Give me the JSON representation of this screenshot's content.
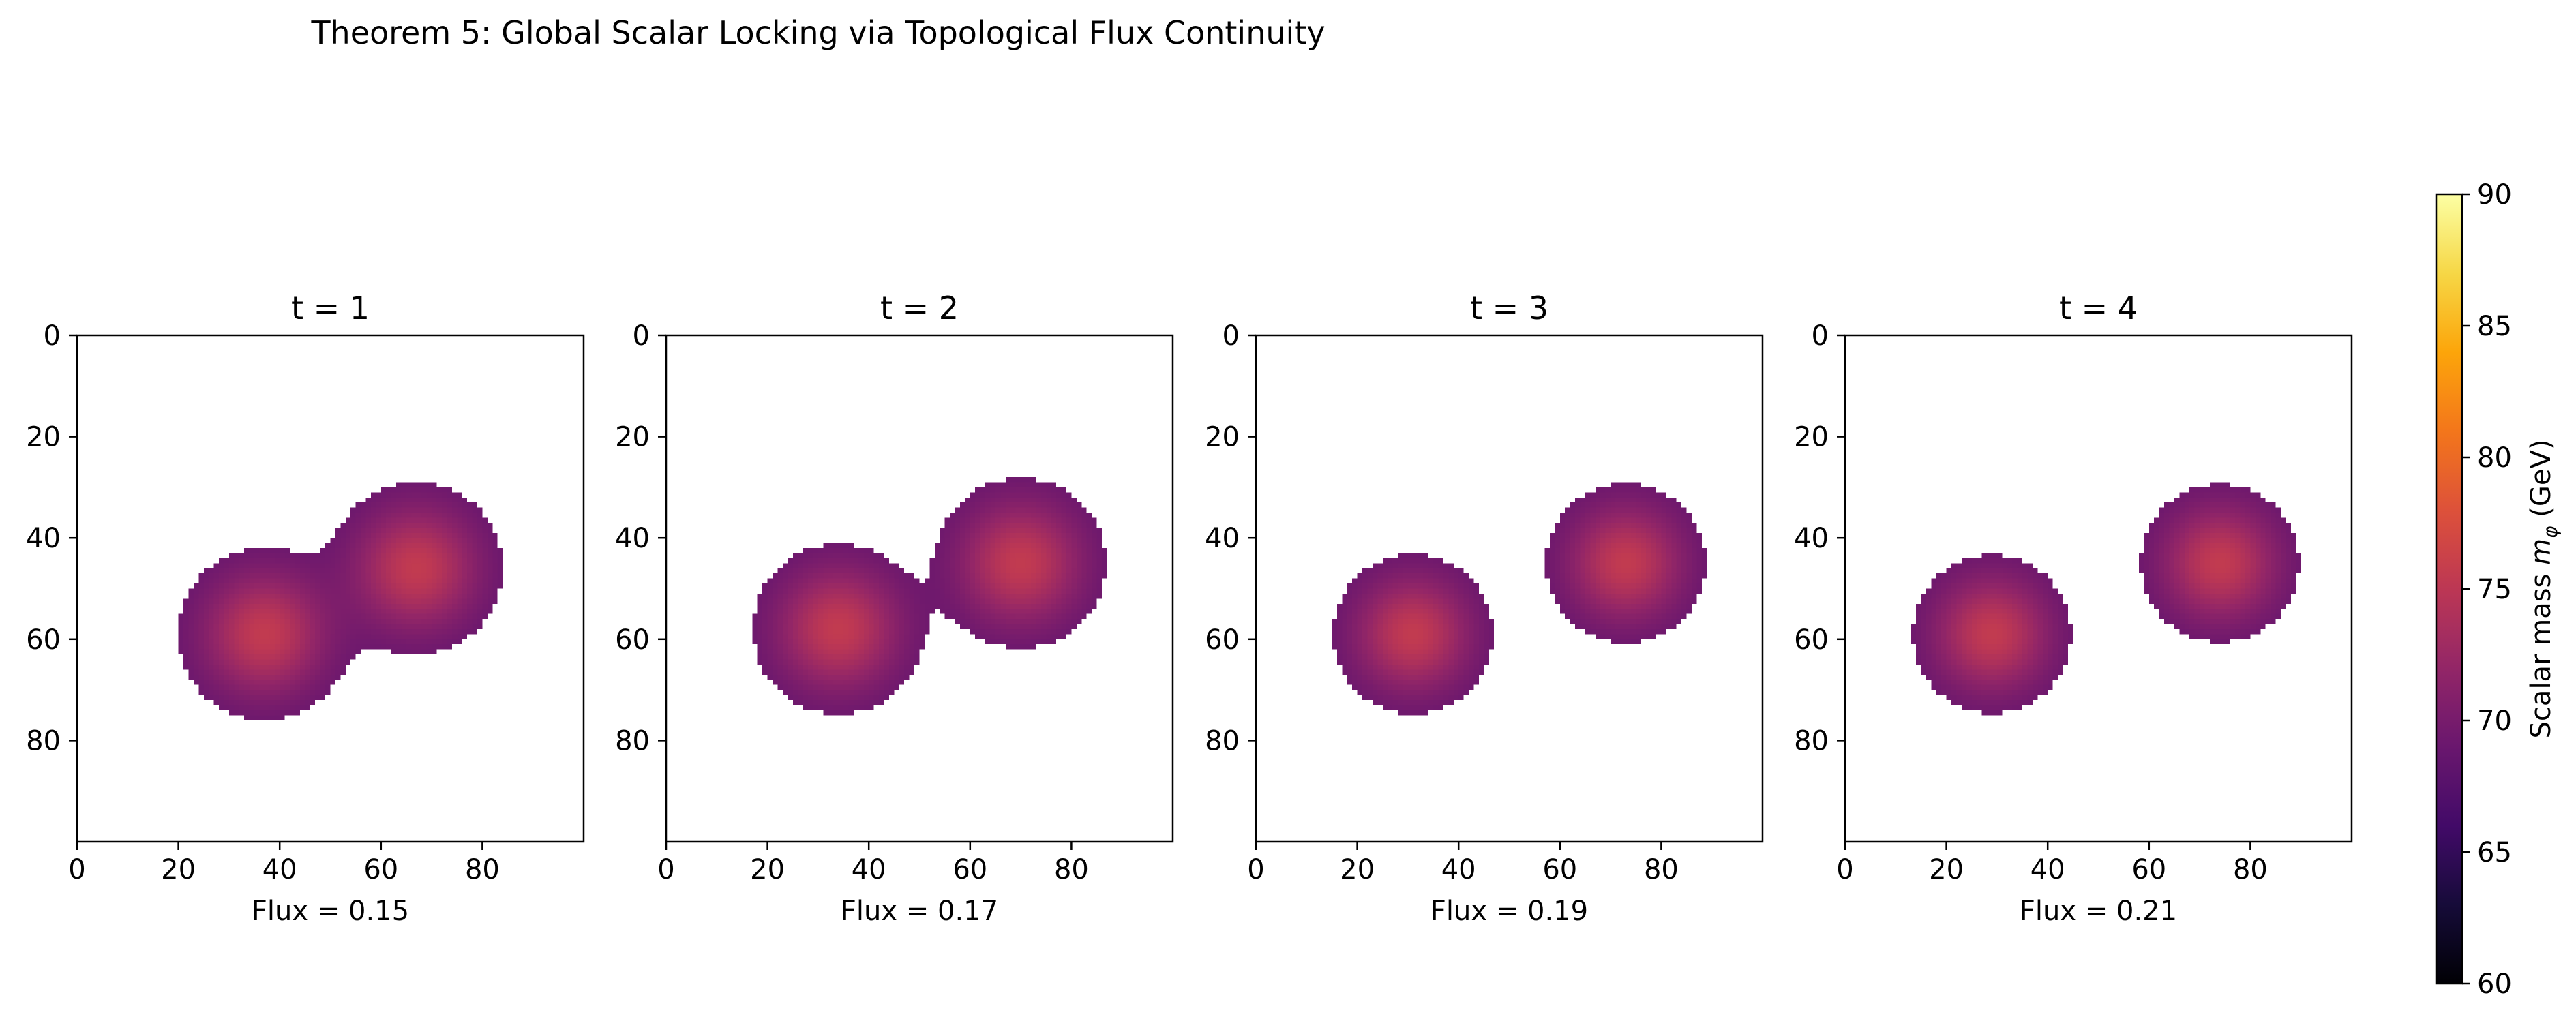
{
  "figure": {
    "title": "Theorem 5: Global Scalar Locking via Topological Flux Continuity"
  },
  "colors": {
    "background": "#ffffff",
    "outside_mask": "#ffffff",
    "axes": "#000000"
  },
  "chart_data": [
    {
      "type": "heatmap",
      "title": "t = 1",
      "xlabel": "Flux = 0.15",
      "ylabel": "",
      "xlim": [
        0,
        100
      ],
      "ylim": [
        100,
        0
      ],
      "xticks": [
        0,
        20,
        40,
        60,
        80
      ],
      "yticks": [
        0,
        20,
        40,
        60,
        80
      ],
      "blobs": [
        {
          "cx": 37,
          "cy": 59,
          "r": 17,
          "peak": 75.5
        },
        {
          "cx": 67,
          "cy": 46,
          "r": 17,
          "peak": 75.5
        }
      ]
    },
    {
      "type": "heatmap",
      "title": "t = 2",
      "xlabel": "Flux = 0.17",
      "ylabel": "",
      "xlim": [
        0,
        100
      ],
      "ylim": [
        100,
        0
      ],
      "xticks": [
        0,
        20,
        40,
        60,
        80
      ],
      "yticks": [
        0,
        20,
        40,
        60,
        80
      ],
      "blobs": [
        {
          "cx": 34,
          "cy": 58,
          "r": 17,
          "peak": 75.5
        },
        {
          "cx": 70,
          "cy": 45,
          "r": 17,
          "peak": 75.5
        }
      ]
    },
    {
      "type": "heatmap",
      "title": "t = 3",
      "xlabel": "Flux = 0.19",
      "ylabel": "",
      "xlim": [
        0,
        100
      ],
      "ylim": [
        100,
        0
      ],
      "xticks": [
        0,
        20,
        40,
        60,
        80
      ],
      "yticks": [
        0,
        20,
        40,
        60,
        80
      ],
      "blobs": [
        {
          "cx": 31,
          "cy": 59,
          "r": 16,
          "peak": 75.5
        },
        {
          "cx": 73,
          "cy": 45,
          "r": 16,
          "peak": 75.5
        }
      ]
    },
    {
      "type": "heatmap",
      "title": "t = 4",
      "xlabel": "Flux = 0.21",
      "ylabel": "",
      "xlim": [
        0,
        100
      ],
      "ylim": [
        100,
        0
      ],
      "xticks": [
        0,
        20,
        40,
        60,
        80
      ],
      "yticks": [
        0,
        20,
        40,
        60,
        80
      ],
      "blobs": [
        {
          "cx": 29,
          "cy": 59,
          "r": 16,
          "peak": 75.5
        },
        {
          "cx": 74,
          "cy": 45,
          "r": 16,
          "peak": 75.5
        }
      ]
    }
  ],
  "colorbar": {
    "label": "Scalar mass mφ (GeV)",
    "label_prefix": "Scalar mass ",
    "label_symbol": "m",
    "label_subscript": "φ",
    "label_suffix": " (GeV)",
    "min": 60,
    "max": 90,
    "ticks": [
      "60",
      "65",
      "70",
      "75",
      "80",
      "85",
      "90"
    ],
    "colormap": "inferno"
  }
}
